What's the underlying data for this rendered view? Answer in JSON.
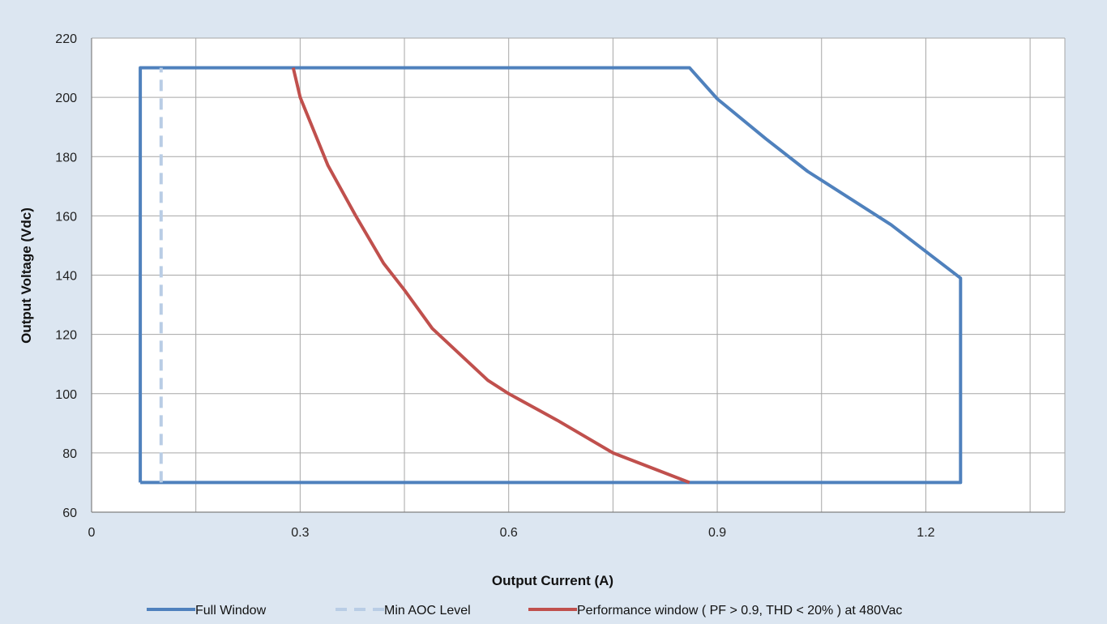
{
  "colors": {
    "background": "#dce6f1",
    "plot_background": "#ffffff",
    "grid": "#a6a6a6",
    "full_window": "#4f81bd",
    "min_aoc": "#b9cde5",
    "performance": "#c0504d"
  },
  "chart_data": {
    "type": "line",
    "title": "",
    "xlabel": "Output Current (A)",
    "ylabel": "Output Voltage (Vdc)",
    "xlim": [
      0,
      1.4
    ],
    "ylim": [
      60,
      220
    ],
    "x_ticks": [
      0,
      0.3,
      0.6,
      0.9,
      1.2
    ],
    "x_tick_labels": [
      "0",
      "0.3",
      "0.6",
      "0.9",
      "1.2"
    ],
    "x_gridlines": [
      0,
      0.15,
      0.3,
      0.45,
      0.6,
      0.75,
      0.9,
      1.05,
      1.2,
      1.35
    ],
    "y_ticks": [
      60,
      80,
      100,
      120,
      140,
      160,
      180,
      200,
      220
    ],
    "y_tick_labels": [
      "60",
      "80",
      "100",
      "120",
      "140",
      "160",
      "180",
      "200",
      "220"
    ],
    "grid": true,
    "legend_position": "bottom",
    "series": [
      {
        "name": "Full Window",
        "style": "solid",
        "color": "#4f81bd",
        "points": [
          [
            0.07,
            70
          ],
          [
            0.07,
            210
          ],
          [
            0.86,
            210
          ],
          [
            0.9,
            199.5
          ],
          [
            0.97,
            186
          ],
          [
            1.03,
            175
          ],
          [
            1.15,
            157
          ],
          [
            1.25,
            139
          ],
          [
            1.25,
            70
          ],
          [
            0.07,
            70
          ]
        ]
      },
      {
        "name": "Min AOC Level",
        "style": "dashed",
        "color": "#b9cde5",
        "points": [
          [
            0.1,
            70
          ],
          [
            0.1,
            210
          ]
        ]
      },
      {
        "name": "Performance window ( PF > 0.9, THD < 20% ) at 480Vac",
        "style": "solid",
        "color": "#c0504d",
        "points": [
          [
            0.29,
            210
          ],
          [
            0.3,
            200
          ],
          [
            0.34,
            177
          ],
          [
            0.38,
            160
          ],
          [
            0.42,
            144
          ],
          [
            0.45,
            135
          ],
          [
            0.49,
            122
          ],
          [
            0.57,
            104.5
          ],
          [
            0.6,
            100
          ],
          [
            0.67,
            91
          ],
          [
            0.75,
            80
          ],
          [
            0.86,
            70
          ]
        ]
      }
    ]
  }
}
